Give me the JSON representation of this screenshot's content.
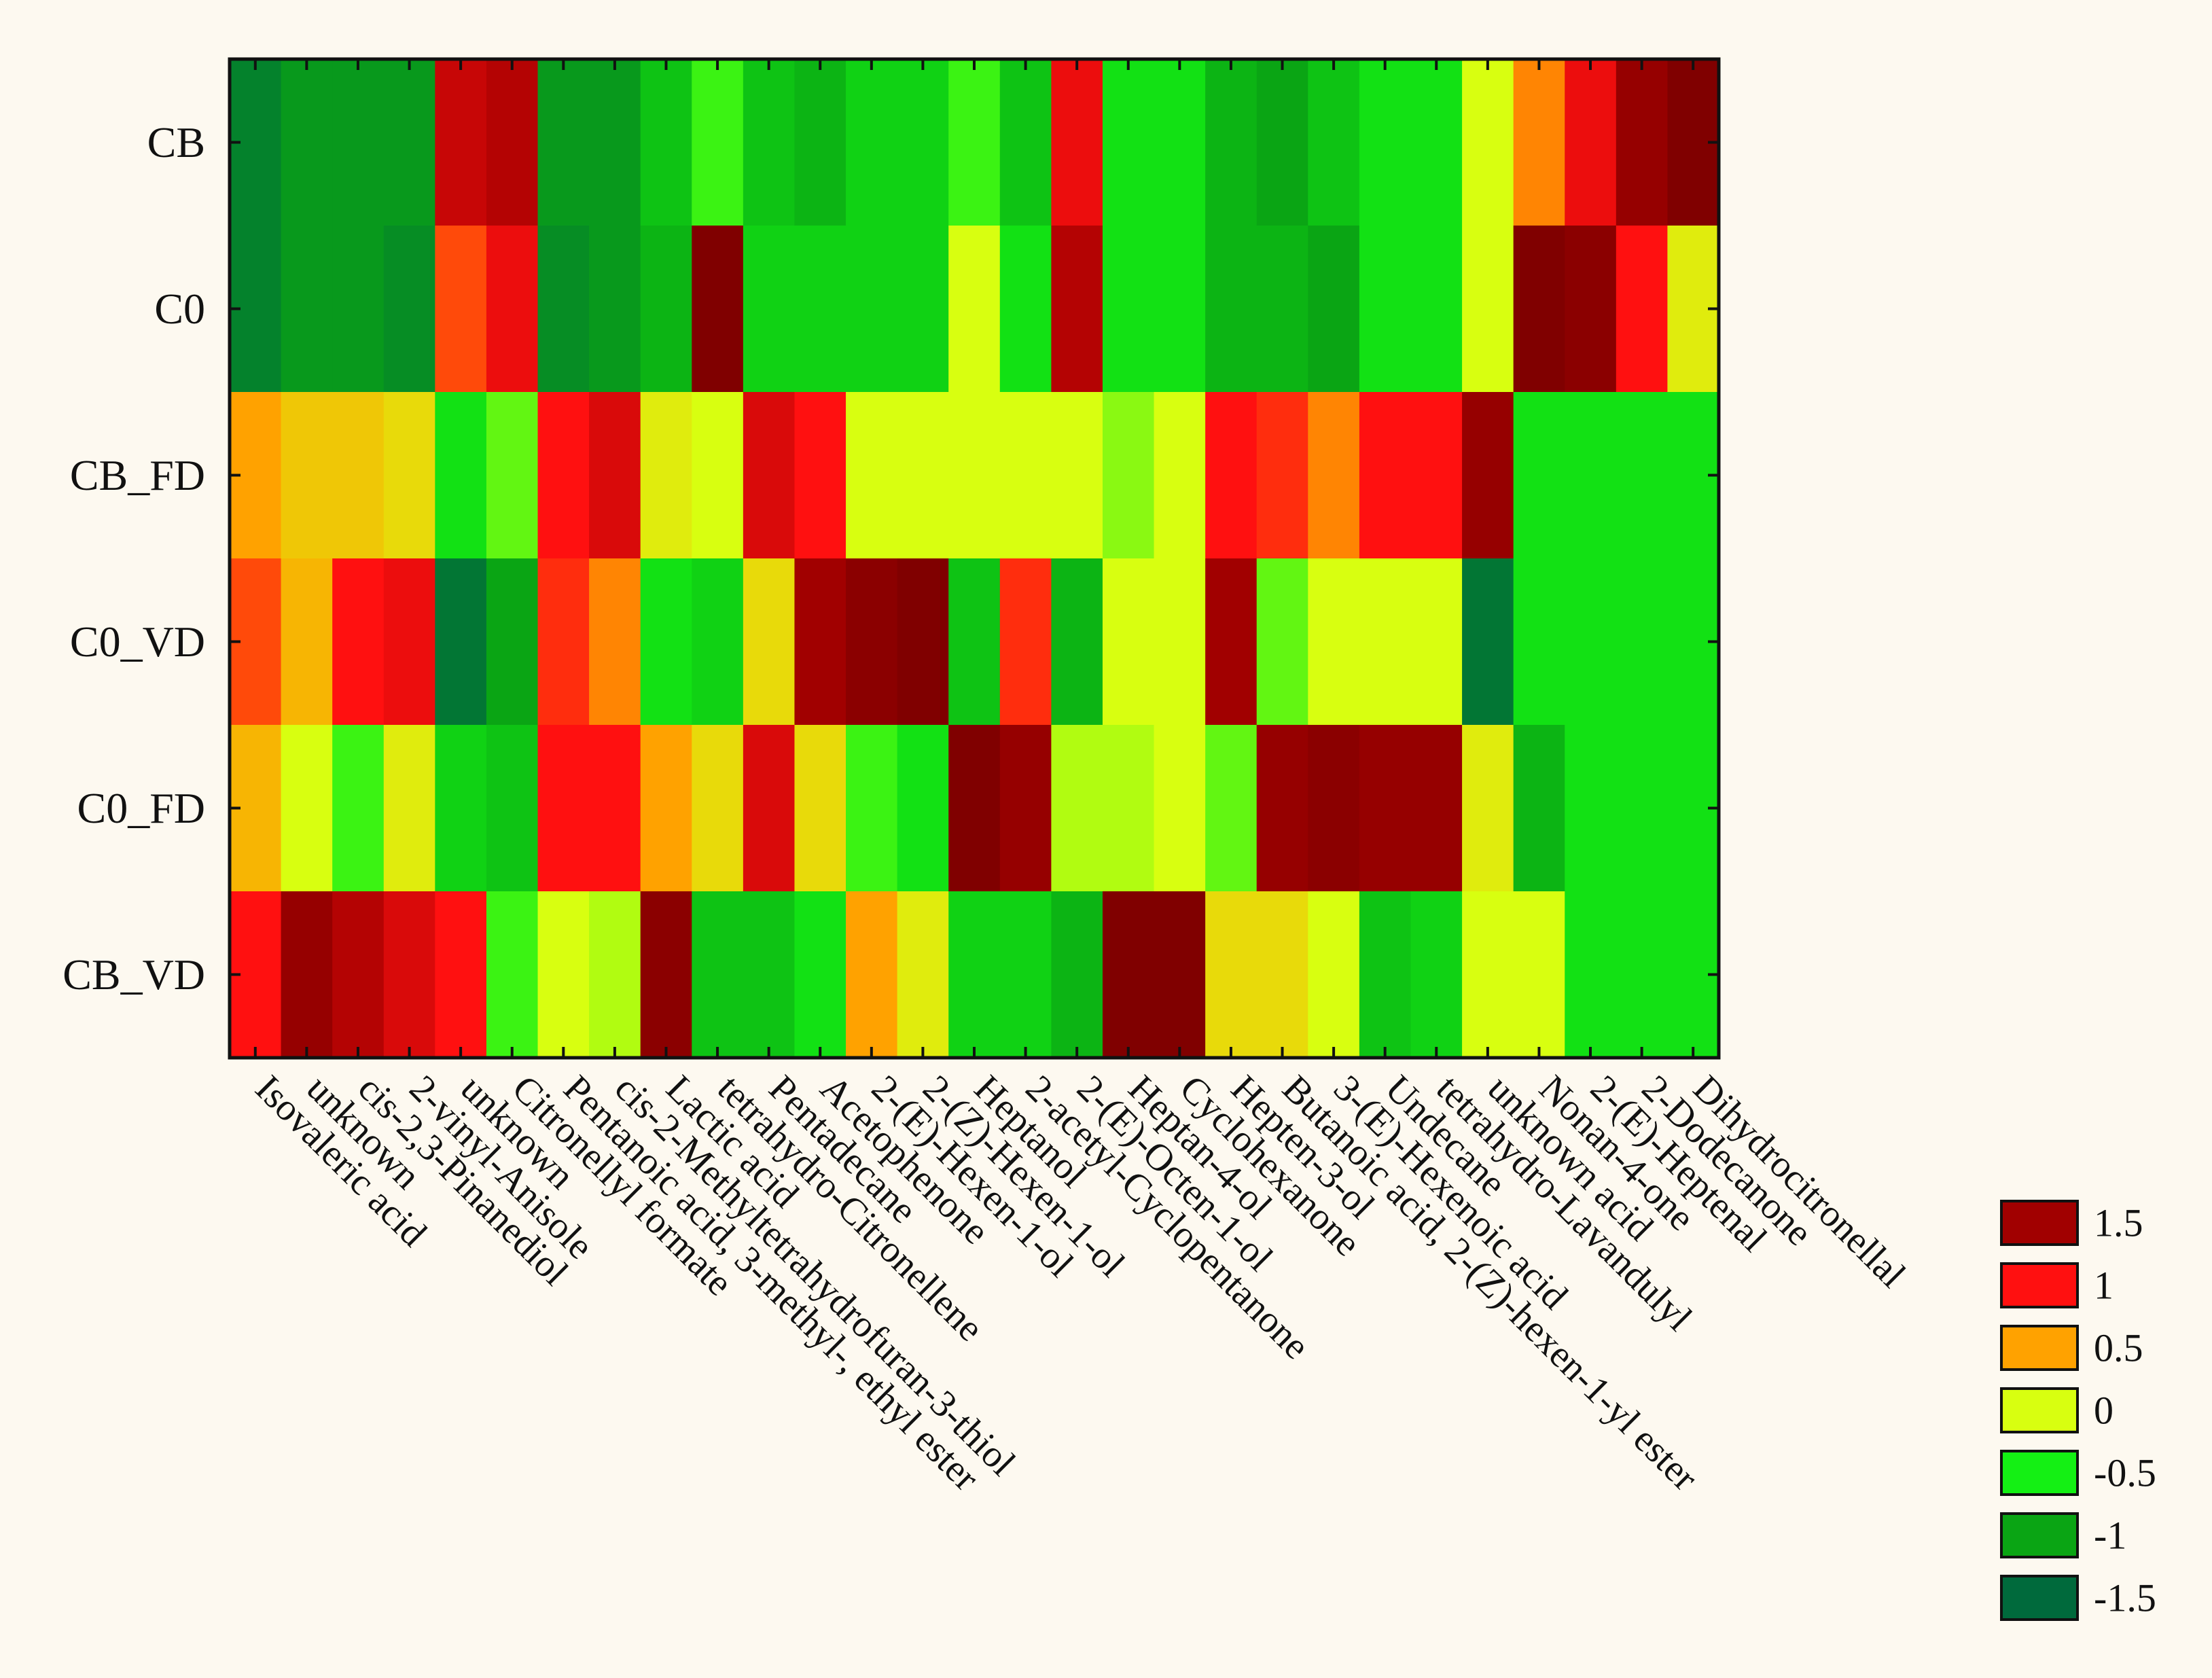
{
  "chart_data": {
    "type": "heatmap",
    "rows": [
      "CB",
      "C0",
      "CB_FD",
      "C0_VD",
      "C0_FD",
      "CB_VD"
    ],
    "columns": [
      "Isovaleric acid",
      "unknown",
      "cis-2,3-Pinanediol",
      "2-vinyl-Anisole",
      "unknown",
      "Citronellyl formate",
      "Pentanoic acid, 3-methyl-, ethyl ester",
      "cis-2-Methyltetrahydrofuran-3-thiol",
      "Lactic acid",
      "tetrahydro-Citronellene",
      "Pentadecane",
      "Acetophenone",
      "2-(E)-Hexen-1-ol",
      "2-(Z)-Hexen-1-ol",
      "Heptanol",
      "2-acetyl-Cyclopentanone",
      "2-(E)-Octen-1-ol",
      "Heptan-4-ol",
      "Cyclohexanone",
      "Hepten-3-ol",
      "Butanoic acid, 2-(Z)-hexen-1-yl ester",
      "3-(E)-Hexenoic acid",
      "Undecane",
      "tetrahydro-Lavandulyl",
      "unknown acid",
      "Nonan-4-one",
      "2-(E)-Heptenal",
      "2-Dodecanone",
      "Dihydrocitronellal"
    ],
    "values": [
      [
        -1.3,
        -1.1,
        -1.1,
        -1.1,
        1.3,
        1.4,
        -1.1,
        -1.1,
        -0.8,
        -0.4,
        -0.8,
        -0.9,
        -0.7,
        -0.7,
        -0.4,
        -0.8,
        1.1,
        -0.6,
        -0.6,
        -0.9,
        -1.0,
        -0.8,
        -0.6,
        -0.6,
        0.0,
        0.6,
        1.1,
        1.6,
        1.8
      ],
      [
        -1.3,
        -1.1,
        -1.1,
        -1.2,
        0.8,
        1.1,
        -1.2,
        -1.1,
        -0.9,
        1.8,
        -0.7,
        -0.7,
        -0.7,
        -0.7,
        0.0,
        -0.6,
        1.4,
        -0.6,
        -0.6,
        -0.9,
        -0.9,
        -1.0,
        -0.6,
        -0.6,
        0.0,
        1.8,
        1.7,
        1.0,
        0.1
      ],
      [
        0.5,
        0.3,
        0.3,
        0.2,
        -0.6,
        -0.3,
        1.0,
        1.2,
        0.1,
        0.0,
        1.2,
        1.0,
        0.0,
        0.0,
        0.0,
        0.0,
        0.0,
        -0.2,
        0.0,
        1.0,
        0.9,
        0.6,
        1.0,
        1.0,
        1.6,
        -0.6,
        -0.6,
        -0.6,
        -0.6
      ],
      [
        0.8,
        0.4,
        1.0,
        1.1,
        -1.4,
        -1.0,
        0.9,
        0.6,
        -0.6,
        -0.7,
        0.2,
        1.5,
        1.7,
        1.8,
        -0.8,
        0.9,
        -0.9,
        0.0,
        0.0,
        1.5,
        -0.3,
        0.0,
        0.0,
        0.0,
        -1.4,
        -0.6,
        -0.6,
        -0.6,
        -0.6
      ],
      [
        0.4,
        0.0,
        -0.4,
        0.1,
        -0.7,
        -0.8,
        1.0,
        1.0,
        0.5,
        0.2,
        1.2,
        0.2,
        -0.4,
        -0.6,
        1.8,
        1.6,
        -0.1,
        -0.1,
        0.0,
        -0.3,
        1.6,
        1.7,
        1.6,
        1.6,
        0.1,
        -0.9,
        -0.6,
        -0.6,
        -0.6
      ],
      [
        1.0,
        1.6,
        1.4,
        1.2,
        1.0,
        -0.4,
        0.0,
        -0.1,
        1.7,
        -0.8,
        -0.8,
        -0.6,
        0.5,
        0.1,
        -0.7,
        -0.7,
        -0.9,
        1.8,
        1.8,
        0.2,
        0.2,
        0.0,
        -0.8,
        -0.7,
        0.0,
        0.0,
        -0.6,
        -0.6,
        -0.6
      ]
    ],
    "legend": {
      "labels": [
        "1.5",
        "1",
        "0.5",
        "0",
        "-0.5",
        "-1",
        "-1.5"
      ],
      "colors": [
        "#a10000",
        "#ff1010",
        "#ffa200",
        "#d8ff10",
        "#14f014",
        "#0aa514",
        "#006a3c"
      ],
      "placement": "bottom-right"
    },
    "colormap": [
      {
        "v": -1.5,
        "c": "#006a3c"
      },
      {
        "v": -1.0,
        "c": "#0aa514"
      },
      {
        "v": -0.5,
        "c": "#14f014"
      },
      {
        "v": 0.0,
        "c": "#d8ff10"
      },
      {
        "v": 0.5,
        "c": "#ffa200"
      },
      {
        "v": 1.0,
        "c": "#ff1010"
      },
      {
        "v": 1.5,
        "c": "#a10000"
      },
      {
        "v": 2.0,
        "c": "#6a0000"
      }
    ]
  }
}
